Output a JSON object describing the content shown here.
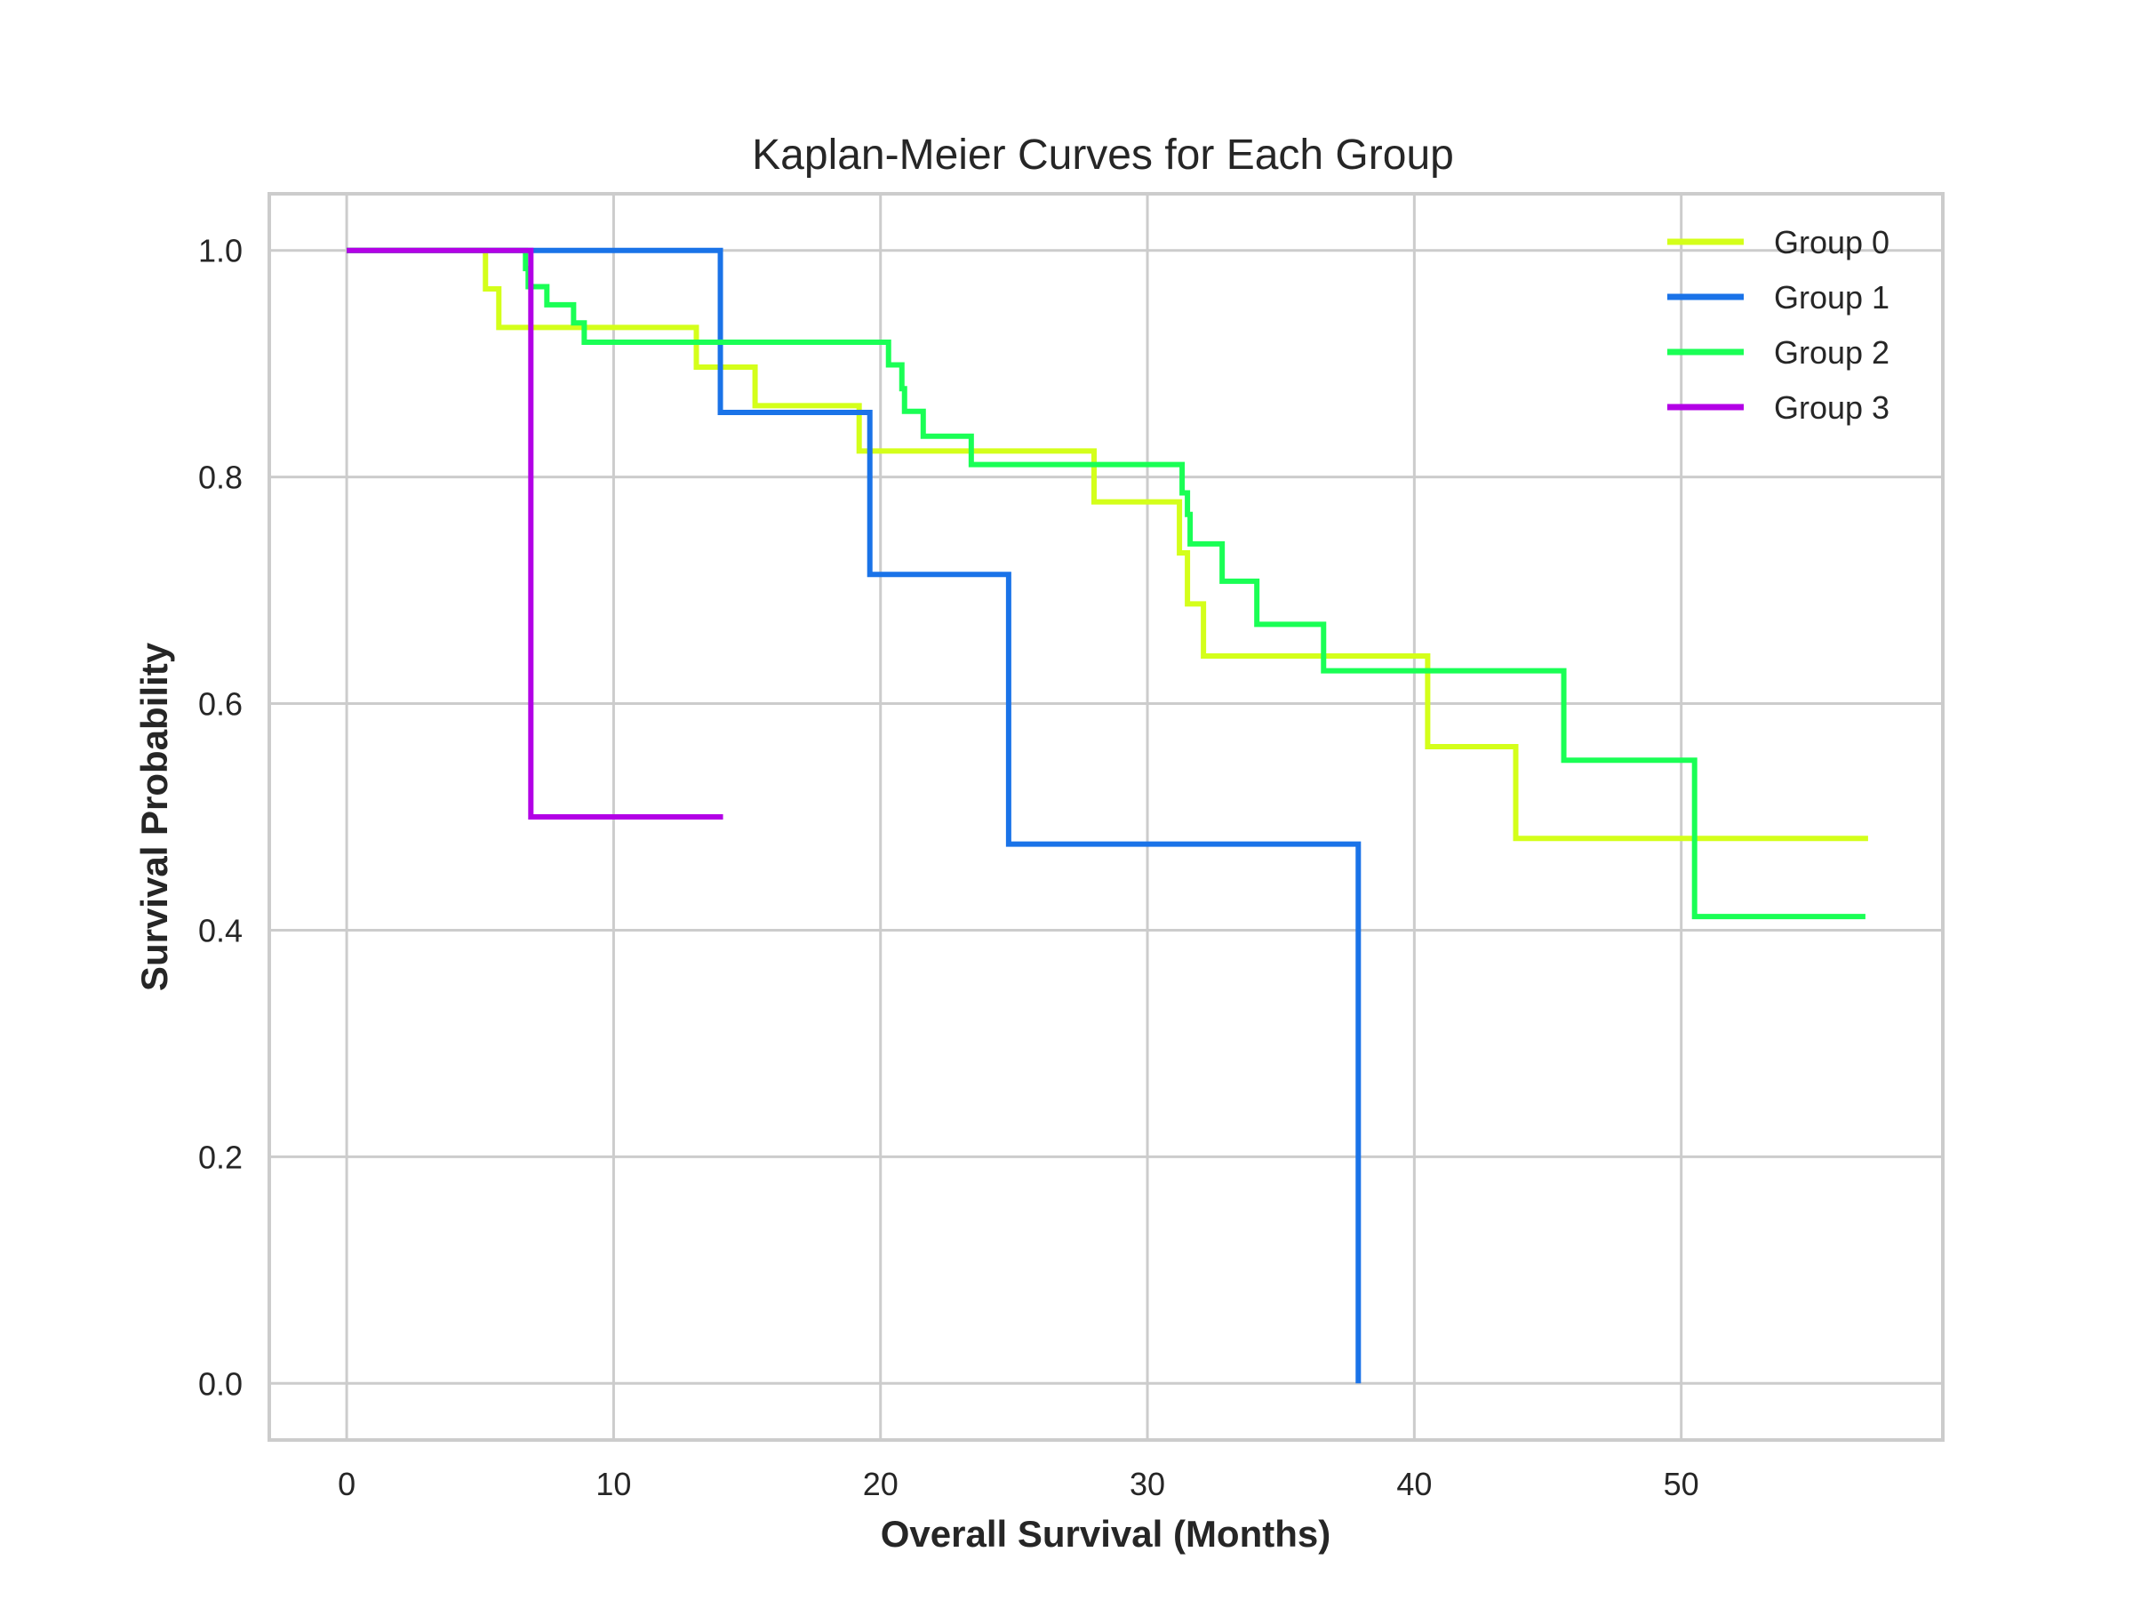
{
  "chart_data": {
    "type": "line",
    "title": "Kaplan-Meier Curves for Each Group",
    "xlabel": "Overall Survival (Months)",
    "ylabel": "Survival Probability",
    "xlim": [
      -2.9,
      59.8
    ],
    "ylim": [
      -0.05,
      1.05
    ],
    "xticks": [
      0,
      10,
      20,
      30,
      40,
      50
    ],
    "yticks": [
      0.0,
      0.2,
      0.4,
      0.6,
      0.8,
      1.0
    ],
    "xtick_labels": [
      "0",
      "10",
      "20",
      "30",
      "40",
      "50"
    ],
    "ytick_labels": [
      "0.0",
      "0.2",
      "0.4",
      "0.6",
      "0.8",
      "1.0"
    ],
    "grid": true,
    "legend": "top-right",
    "series": [
      {
        "name": "Group 0",
        "color": "#d4ff1a",
        "step": "post",
        "points": [
          [
            0,
            1.0
          ],
          [
            5.2,
            0.966
          ],
          [
            5.7,
            0.932
          ],
          [
            13.1,
            0.897
          ],
          [
            15.3,
            0.863
          ],
          [
            19.2,
            0.823
          ],
          [
            28.0,
            0.778
          ],
          [
            31.2,
            0.733
          ],
          [
            31.5,
            0.688
          ],
          [
            32.1,
            0.642
          ],
          [
            40.5,
            0.562
          ],
          [
            43.8,
            0.481
          ],
          [
            57.0,
            0.481
          ]
        ]
      },
      {
        "name": "Group 1",
        "color": "#1a73e8",
        "step": "post",
        "points": [
          [
            0,
            1.0
          ],
          [
            14.0,
            0.857
          ],
          [
            19.6,
            0.714
          ],
          [
            24.8,
            0.476
          ],
          [
            37.9,
            0.0
          ],
          [
            37.9,
            0.0
          ]
        ]
      },
      {
        "name": "Group 2",
        "color": "#1aff55",
        "step": "post",
        "points": [
          [
            0,
            1.0
          ],
          [
            6.7,
            0.984
          ],
          [
            6.8,
            0.968
          ],
          [
            7.5,
            0.952
          ],
          [
            8.5,
            0.936
          ],
          [
            8.9,
            0.919
          ],
          [
            20.3,
            0.899
          ],
          [
            20.8,
            0.878
          ],
          [
            20.9,
            0.858
          ],
          [
            21.6,
            0.836
          ],
          [
            23.4,
            0.811
          ],
          [
            31.3,
            0.786
          ],
          [
            31.5,
            0.767
          ],
          [
            31.6,
            0.741
          ],
          [
            32.8,
            0.708
          ],
          [
            34.1,
            0.67
          ],
          [
            36.6,
            0.629
          ],
          [
            45.6,
            0.55
          ],
          [
            50.5,
            0.412
          ],
          [
            56.9,
            0.412
          ]
        ]
      },
      {
        "name": "Group 3",
        "color": "#b300e6",
        "step": "post",
        "points": [
          [
            0,
            1.0
          ],
          [
            6.9,
            0.5
          ],
          [
            14.1,
            0.5
          ]
        ]
      }
    ]
  }
}
